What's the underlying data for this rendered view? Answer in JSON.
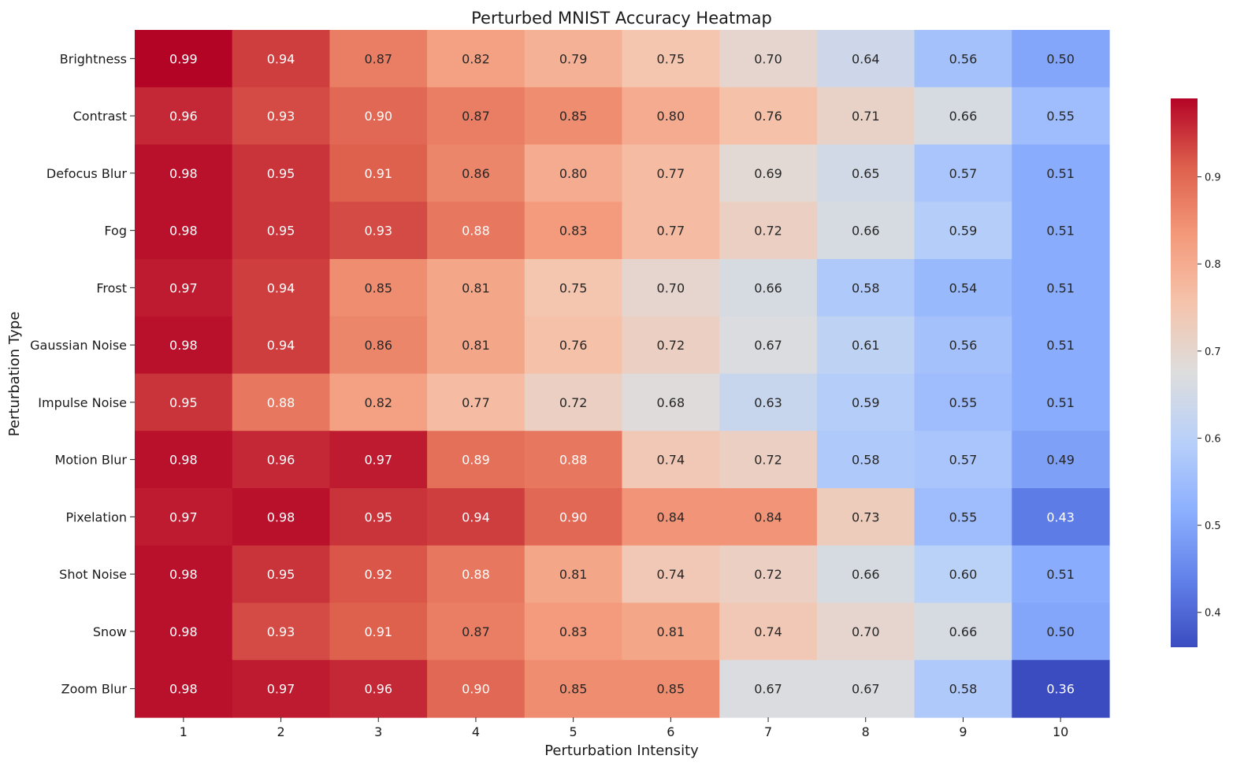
{
  "chart_data": {
    "type": "heatmap",
    "title": "Perturbed MNIST Accuracy Heatmap",
    "xlabel": "Perturbation Intensity",
    "ylabel": "Perturbation Type",
    "x_categories": [
      "1",
      "2",
      "3",
      "4",
      "5",
      "6",
      "7",
      "8",
      "9",
      "10"
    ],
    "y_categories": [
      "Brightness",
      "Contrast",
      "Defocus Blur",
      "Fog",
      "Frost",
      "Gaussian Noise",
      "Impulse Noise",
      "Motion Blur",
      "Pixelation",
      "Shot Noise",
      "Snow",
      "Zoom Blur"
    ],
    "values": [
      [
        0.99,
        0.94,
        0.87,
        0.82,
        0.79,
        0.75,
        0.7,
        0.64,
        0.56,
        0.5
      ],
      [
        0.96,
        0.93,
        0.9,
        0.87,
        0.85,
        0.8,
        0.76,
        0.71,
        0.66,
        0.55
      ],
      [
        0.98,
        0.95,
        0.91,
        0.86,
        0.8,
        0.77,
        0.69,
        0.65,
        0.57,
        0.51
      ],
      [
        0.98,
        0.95,
        0.93,
        0.88,
        0.83,
        0.77,
        0.72,
        0.66,
        0.59,
        0.51
      ],
      [
        0.97,
        0.94,
        0.85,
        0.81,
        0.75,
        0.7,
        0.66,
        0.58,
        0.54,
        0.51
      ],
      [
        0.98,
        0.94,
        0.86,
        0.81,
        0.76,
        0.72,
        0.67,
        0.61,
        0.56,
        0.51
      ],
      [
        0.95,
        0.88,
        0.82,
        0.77,
        0.72,
        0.68,
        0.63,
        0.59,
        0.55,
        0.51
      ],
      [
        0.98,
        0.96,
        0.97,
        0.89,
        0.88,
        0.74,
        0.72,
        0.58,
        0.57,
        0.49
      ],
      [
        0.97,
        0.98,
        0.95,
        0.94,
        0.9,
        0.84,
        0.84,
        0.73,
        0.55,
        0.43
      ],
      [
        0.98,
        0.95,
        0.92,
        0.88,
        0.81,
        0.74,
        0.72,
        0.66,
        0.6,
        0.51
      ],
      [
        0.98,
        0.93,
        0.91,
        0.87,
        0.83,
        0.81,
        0.74,
        0.7,
        0.66,
        0.5
      ],
      [
        0.98,
        0.97,
        0.96,
        0.9,
        0.85,
        0.85,
        0.67,
        0.67,
        0.58,
        0.36
      ]
    ],
    "value_format": "0.00",
    "colormap": "coolwarm",
    "vmin": 0.36,
    "vmax": 0.99,
    "colorbar": {
      "ticks": [
        0.4,
        0.5,
        0.6,
        0.7,
        0.8,
        0.9
      ],
      "tick_labels": [
        "0.4",
        "0.5",
        "0.6",
        "0.7",
        "0.8",
        "0.9"
      ],
      "placement": "right"
    },
    "grid": false
  }
}
